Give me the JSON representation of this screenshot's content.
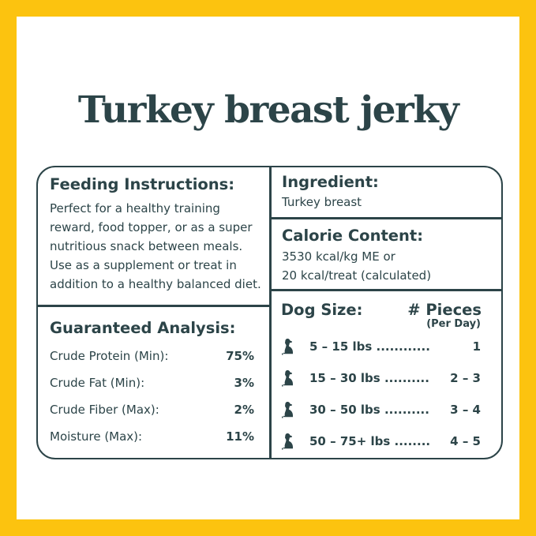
{
  "title": "Turkey breast jerky",
  "colors": {
    "border": "#fcc30f",
    "text": "#2c4448"
  },
  "feeding": {
    "heading": "Feeding Instructions:",
    "lines": [
      "Perfect for a healthy training",
      "reward, food topper, or as a super",
      "nutritious snack between meals.",
      "Use as a supplement or treat in",
      "addition to a healthy balanced diet."
    ]
  },
  "analysis": {
    "heading": "Guaranteed Analysis:",
    "rows": [
      {
        "label": "Crude Protein (Min):",
        "value": "75%"
      },
      {
        "label": "Crude Fat (Min):",
        "value": "3%"
      },
      {
        "label": "Crude Fiber (Max):",
        "value": "2%"
      },
      {
        "label": "Moisture (Max):",
        "value": "11%"
      }
    ]
  },
  "ingredient": {
    "heading": "Ingredient:",
    "text": "Turkey breast"
  },
  "calorie": {
    "heading": "Calorie Content:",
    "lines": [
      "3530 kcal/kg ME or",
      "20 kcal/treat (calculated)"
    ]
  },
  "dosing": {
    "size_heading": "Dog Size:",
    "pieces_heading": "# Pieces",
    "pieces_sub": "(Per Day)",
    "icon": "sitting-dog-icon",
    "rows": [
      {
        "size": "5 – 15 lbs ............",
        "pieces": "1"
      },
      {
        "size": "15 – 30 lbs ..........",
        "pieces": "2 – 3"
      },
      {
        "size": "30 – 50 lbs ..........",
        "pieces": "3 – 4"
      },
      {
        "size": "50 – 75+ lbs ........",
        "pieces": "4 – 5"
      }
    ]
  }
}
